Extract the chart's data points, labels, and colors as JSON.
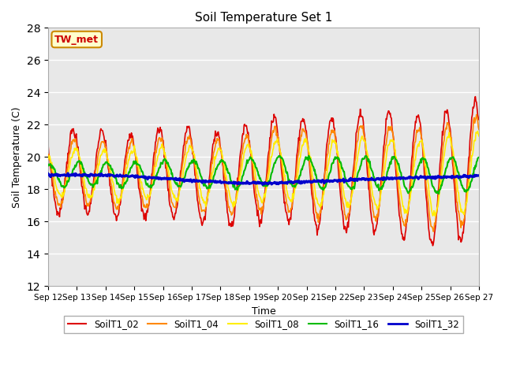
{
  "title": "Soil Temperature Set 1",
  "xlabel": "Time",
  "ylabel": "Soil Temperature (C)",
  "ylim": [
    12,
    28
  ],
  "yticks": [
    12,
    14,
    16,
    18,
    20,
    22,
    24,
    26,
    28
  ],
  "annotation_text": "TW_met",
  "annotation_color": "#cc0000",
  "annotation_bg": "#ffffcc",
  "annotation_border": "#cc8800",
  "series_colors": {
    "SoilT1_02": "#dd0000",
    "SoilT1_04": "#ff8800",
    "SoilT1_08": "#ffee00",
    "SoilT1_16": "#00bb00",
    "SoilT1_32": "#0000cc"
  },
  "series_lw": {
    "SoilT1_02": 1.2,
    "SoilT1_04": 1.2,
    "SoilT1_08": 1.2,
    "SoilT1_16": 1.5,
    "SoilT1_32": 2.2
  },
  "bg_color": "#e8e8e8",
  "fig_bg": "#ffffff",
  "grid_color": "#ffffff",
  "xtick_labels": [
    "Sep 12",
    "Sep 13",
    "Sep 14",
    "Sep 15",
    "Sep 16",
    "Sep 17",
    "Sep 18",
    "Sep 19",
    "Sep 20",
    "Sep 21",
    "Sep 22",
    "Sep 23",
    "Sep 24",
    "Sep 25",
    "Sep 26",
    "Sep 27"
  ]
}
